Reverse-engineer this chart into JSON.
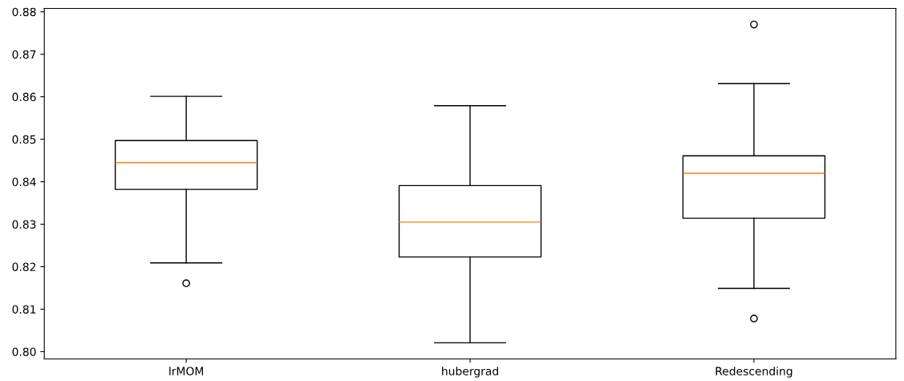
{
  "chart_data": {
    "type": "box",
    "categories": [
      "lrMOM",
      "hubergrad",
      "Redescending"
    ],
    "boxes": [
      {
        "low": 0.8209,
        "q1": 0.8382,
        "median": 0.8445,
        "q3": 0.8497,
        "high": 0.8601,
        "outliers": [
          0.8161
        ]
      },
      {
        "low": 0.8021,
        "q1": 0.8223,
        "median": 0.8305,
        "q3": 0.8391,
        "high": 0.8579
      },
      {
        "low": 0.8149,
        "q1": 0.8314,
        "median": 0.842,
        "q3": 0.8461,
        "high": 0.8631,
        "outliers": [
          0.877,
          0.8078
        ]
      }
    ],
    "color": "#000000",
    "ylim": [
      0.7983,
      0.8808
    ],
    "yticks": [
      {
        "value": 0.8,
        "label": "0.80"
      },
      0.81,
      0.82,
      0.83,
      0.84,
      0.85,
      0.86,
      0.87,
      0.88
    ],
    "grid": false
  }
}
